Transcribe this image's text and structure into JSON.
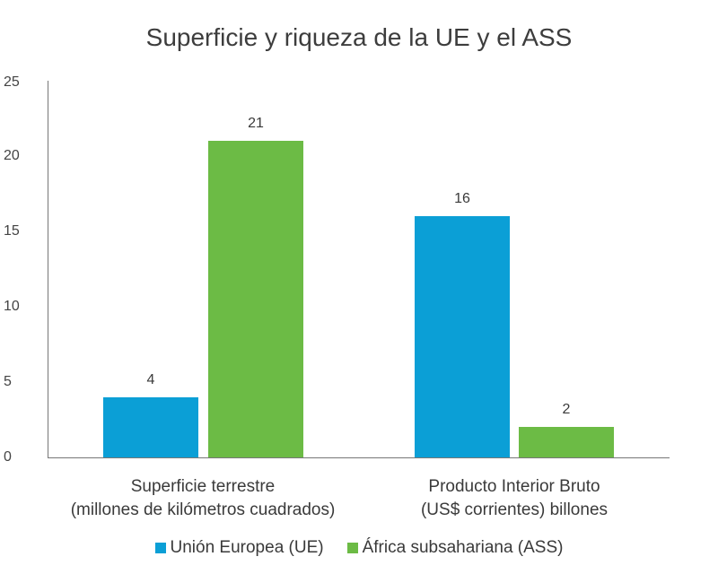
{
  "chart_data": {
    "type": "bar",
    "title": "Superficie y riqueza de la UE y el ASS",
    "categories": [
      "Superficie terrestre (millones de kilómetros cuadrados)",
      "Producto Interior Bruto (US$ corrientes) billones"
    ],
    "series": [
      {
        "name": "Unión Europea (UE)",
        "color": "#0b9fd6",
        "values": [
          4,
          16
        ]
      },
      {
        "name": "África subsahariana (ASS)",
        "color": "#6cbb45",
        "values": [
          21,
          2
        ]
      }
    ],
    "xlabel": "",
    "ylabel": "",
    "ylim": [
      0,
      25
    ],
    "yticks": [
      0,
      5,
      10,
      15,
      20,
      25
    ],
    "grid": false,
    "legend_position": "bottom",
    "data_labels": true
  },
  "title": "Superficie y riqueza de la UE y el ASS",
  "yticks": [
    "0",
    "5",
    "10",
    "15",
    "20",
    "25"
  ],
  "categories": [
    {
      "line1": "Superficie terrestre",
      "line2": "(millones de kilómetros cuadrados)"
    },
    {
      "line1": "Producto Interior Bruto",
      "line2": "(US$ corrientes) billones"
    }
  ],
  "bars": [
    {
      "series": "UE",
      "value": 4,
      "label": "4",
      "color": "#0b9fd6"
    },
    {
      "series": "ASS",
      "value": 21,
      "label": "21",
      "color": "#6cbb45"
    },
    {
      "series": "UE",
      "value": 16,
      "label": "16",
      "color": "#0b9fd6"
    },
    {
      "series": "ASS",
      "value": 2,
      "label": "2",
      "color": "#6cbb45"
    }
  ],
  "legend": [
    {
      "label": "Unión Europea (UE)",
      "color": "#0b9fd6"
    },
    {
      "label": "África subsahariana (ASS)",
      "color": "#6cbb45"
    }
  ]
}
